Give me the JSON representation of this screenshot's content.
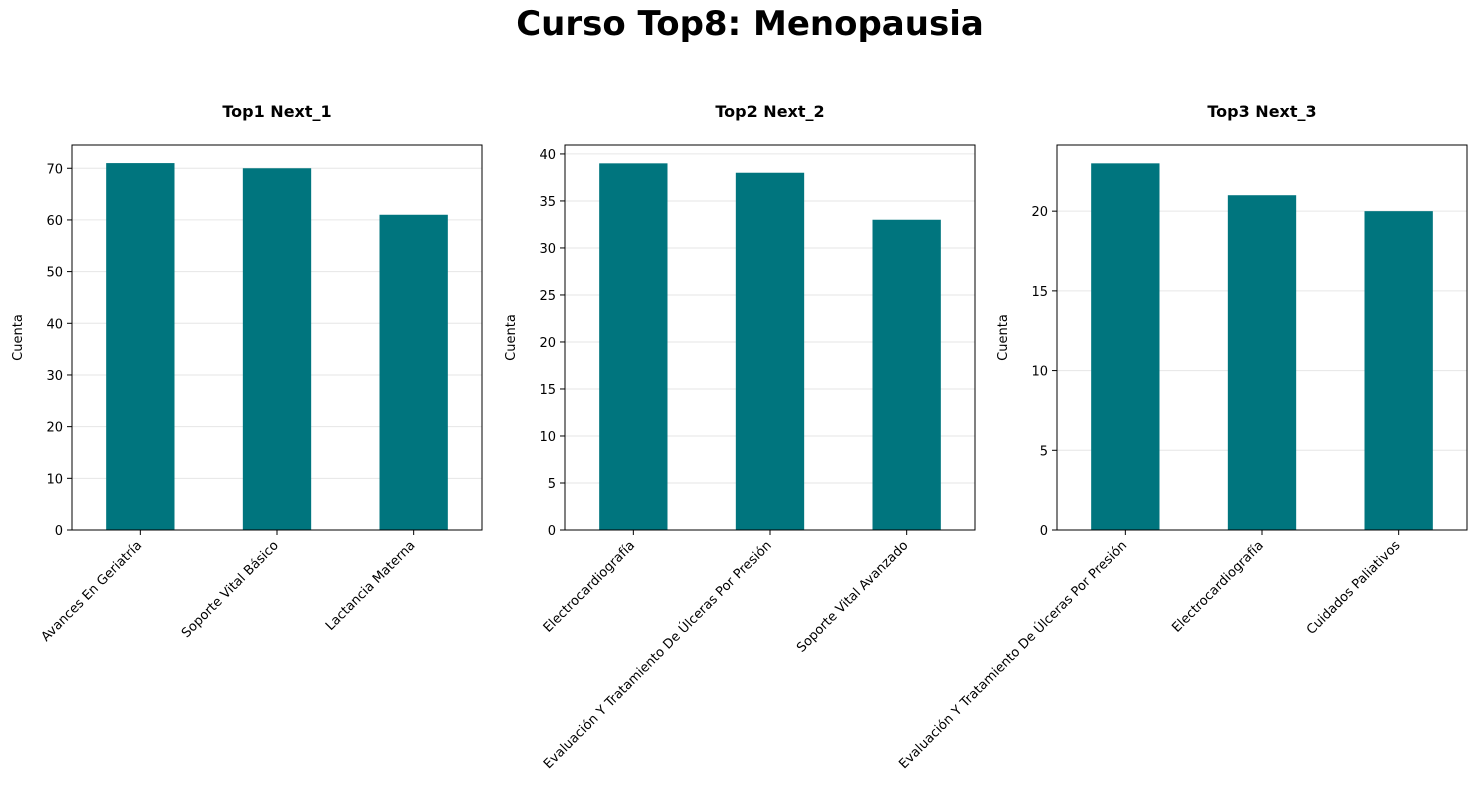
{
  "figure": {
    "title": "Curso Top8: Menopausia"
  },
  "colors": {
    "bar": "#00757e",
    "grid": "#e6e6e6",
    "axis": "#000000",
    "text": "#000000"
  },
  "chart_data": [
    {
      "type": "bar",
      "title": "Top1 Next_1",
      "xlabel": "",
      "ylabel": "Cuenta",
      "categories": [
        "Avances En Geriatría",
        "Soporte Vital Básico",
        "Lactancia Materna"
      ],
      "values": [
        71,
        70,
        61
      ],
      "ylim": [
        0,
        74.5
      ],
      "yticks": [
        0,
        10,
        20,
        30,
        40,
        50,
        60,
        70
      ],
      "grid": "y"
    },
    {
      "type": "bar",
      "title": "Top2 Next_2",
      "xlabel": "",
      "ylabel": "Cuenta",
      "categories": [
        "Electrocardiografía",
        "Evaluación Y Tratamiento De Úlceras Por Presión",
        "Soporte Vital Avanzado"
      ],
      "values": [
        39,
        38,
        33
      ],
      "ylim": [
        0,
        40.95
      ],
      "yticks": [
        0,
        5,
        10,
        15,
        20,
        25,
        30,
        35,
        40
      ],
      "grid": "y"
    },
    {
      "type": "bar",
      "title": "Top3 Next_3",
      "xlabel": "",
      "ylabel": "Cuenta",
      "categories": [
        "Evaluación Y Tratamiento De Úlceras Por Presión",
        "Electrocardiografía",
        "Cuidados Paliativos"
      ],
      "values": [
        23,
        21,
        20
      ],
      "ylim": [
        0,
        24.15
      ],
      "yticks": [
        0,
        5,
        10,
        15,
        20
      ],
      "grid": "y"
    }
  ]
}
